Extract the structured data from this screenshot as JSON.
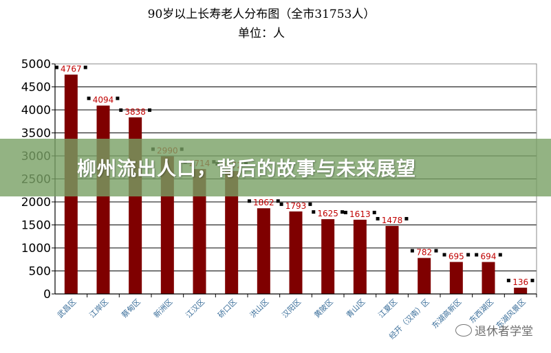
{
  "chart_data": {
    "type": "bar",
    "title": "90岁以上长寿老人分布图（全市31753人）",
    "subtitle": "单位：人",
    "categories": [
      "武昌区",
      "江岸区",
      "蔡甸区",
      "新洲区",
      "江汉区",
      "硚口区",
      "洪山区",
      "汉阳区",
      "黄陂区",
      "青山区",
      "江夏区",
      "经开（汉南）区",
      "东湖高新区",
      "东西湖区",
      "东湖风景区"
    ],
    "values": [
      4767,
      4094,
      3838,
      2990,
      2714,
      2672,
      1862,
      1793,
      1625,
      1613,
      1478,
      782,
      695,
      694,
      136
    ],
    "ylim": [
      0,
      5000
    ],
    "yticks": [
      0,
      500,
      1000,
      1500,
      2000,
      2500,
      3000,
      3500,
      4000,
      4500,
      5000
    ],
    "bar_color": "#7f0000",
    "label_color": "#c00000",
    "category_label_color": "#3a6e9a",
    "grid": true
  },
  "banner": {
    "text": "柳州流出人口，背后的故事与未来展望"
  },
  "watermark": {
    "text": "退休者学堂",
    "icon": "wechat-icon"
  }
}
